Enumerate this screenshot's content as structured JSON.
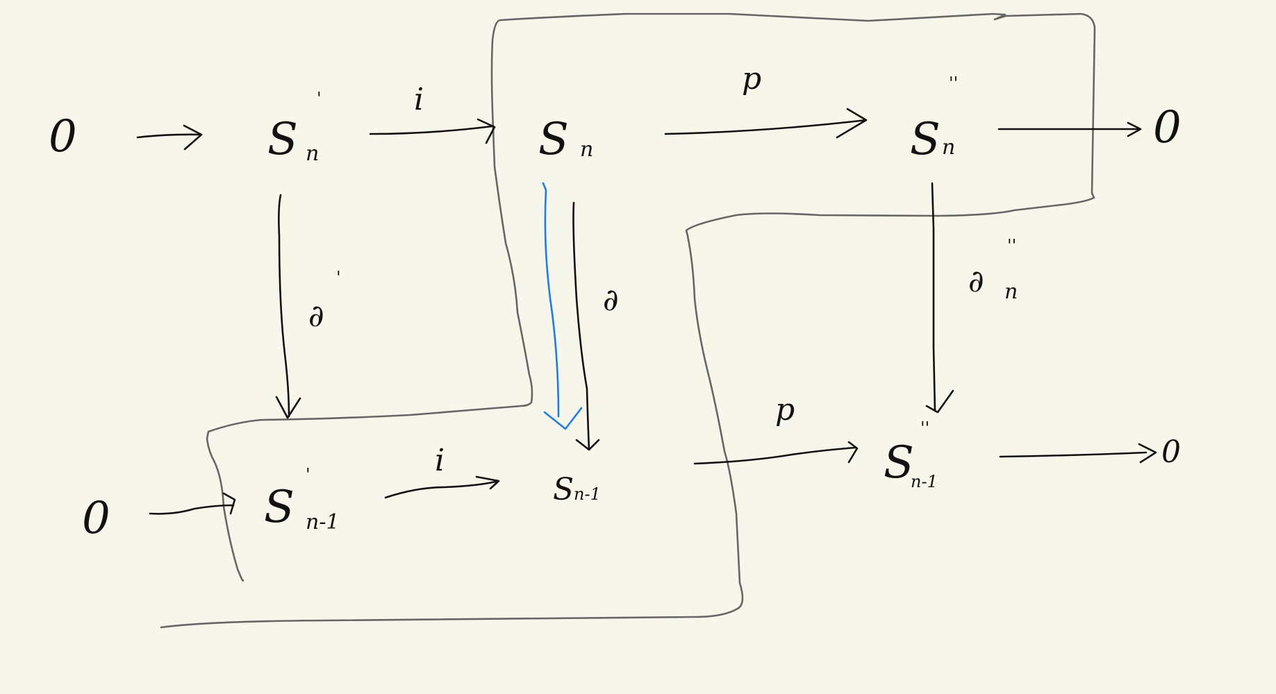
{
  "labels": {
    "zero": "0",
    "s": "S",
    "sub_n": "n",
    "sub_n1": "n-1",
    "prime": "'",
    "dprime": "''",
    "i": "i",
    "p": "p",
    "del": "∂"
  },
  "colors": {
    "background": "#f7f6ea",
    "ink": "#111111",
    "box": "#666666",
    "highlight": "#1a7cf0"
  }
}
